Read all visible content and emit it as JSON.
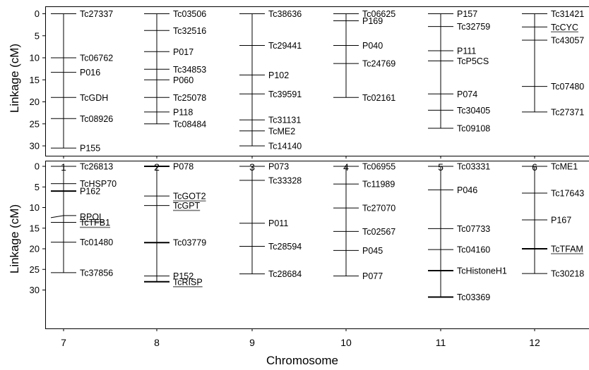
{
  "chart_data": {
    "type": "genetic-linkage-map",
    "xlabel": "Chromosome",
    "ylabel": "Linkage (cM)",
    "ylim": [
      0,
      32
    ],
    "yticks": [
      0,
      5,
      10,
      15,
      20,
      25,
      30
    ],
    "grid": false,
    "panels": [
      {
        "chromosomes": [
          {
            "label": "1",
            "length": 30.5,
            "markers": [
              {
                "name": "Tc27337",
                "pos": 0
              },
              {
                "name": "Tc06762",
                "pos": 10
              },
              {
                "name": "P016",
                "pos": 13.3
              },
              {
                "name": "TcGDH",
                "pos": 19
              },
              {
                "name": "Tc08926",
                "pos": 23.8
              },
              {
                "name": "P155",
                "pos": 30.5
              }
            ]
          },
          {
            "label": "2",
            "length": 25,
            "markers": [
              {
                "name": "Tc03506",
                "pos": 0
              },
              {
                "name": "Tc32516",
                "pos": 3.8
              },
              {
                "name": "P017",
                "pos": 8.6
              },
              {
                "name": "Tc34853",
                "pos": 12.6
              },
              {
                "name": "P060",
                "pos": 15
              },
              {
                "name": "Tc25078",
                "pos": 19
              },
              {
                "name": "P118",
                "pos": 22.3
              },
              {
                "name": "Tc08484",
                "pos": 25
              }
            ]
          },
          {
            "label": "3",
            "length": 30,
            "markers": [
              {
                "name": "Tc38636",
                "pos": 0
              },
              {
                "name": "Tc29441",
                "pos": 7.2
              },
              {
                "name": "P102",
                "pos": 13.9
              },
              {
                "name": "Tc39591",
                "pos": 18.2
              },
              {
                "name": "Tc31131",
                "pos": 24.1
              },
              {
                "name": "TcME2",
                "pos": 26.6
              },
              {
                "name": "Tc14140",
                "pos": 30
              }
            ]
          },
          {
            "label": "4",
            "length": 19,
            "markers": [
              {
                "name": "Tc06625",
                "pos": 0
              },
              {
                "name": "P169",
                "pos": 1.6,
                "labelOffset": 0
              },
              {
                "name": "P040",
                "pos": 7.2
              },
              {
                "name": "Tc24769",
                "pos": 11.3
              },
              {
                "name": "Tc02161",
                "pos": 19
              }
            ]
          },
          {
            "label": "5",
            "length": 26,
            "markers": [
              {
                "name": "P157",
                "pos": 0
              },
              {
                "name": "Tc32759",
                "pos": 2.9
              },
              {
                "name": "P111",
                "pos": 8.4
              },
              {
                "name": "TcP5CS",
                "pos": 10.7
              },
              {
                "name": "P074",
                "pos": 18.2
              },
              {
                "name": "Tc30405",
                "pos": 21.9
              },
              {
                "name": "Tc09108",
                "pos": 26
              }
            ]
          },
          {
            "label": "6",
            "length": 22.3,
            "markers": [
              {
                "name": "Tc31421",
                "pos": 0
              },
              {
                "name": "TcCYC",
                "pos": 3,
                "underline": true
              },
              {
                "name": "Tc43057",
                "pos": 6
              },
              {
                "name": "Tc07480",
                "pos": 16.5
              },
              {
                "name": "Tc27371",
                "pos": 22.3
              }
            ]
          }
        ]
      },
      {
        "chromosomes": [
          {
            "label": "7",
            "length": 25.8,
            "markers": [
              {
                "name": "Tc26813",
                "pos": 0
              },
              {
                "name": "TcHSP70",
                "pos": 4.2
              },
              {
                "name": "P162",
                "pos": 6,
                "bold": true
              },
              {
                "name": "RPOL",
                "pos": 12.2,
                "underline": true,
                "diagonal": true
              },
              {
                "name": "TcTFB1",
                "pos": 13.6,
                "underline": true
              },
              {
                "name": "Tc01480",
                "pos": 18.4
              },
              {
                "name": "Tc37856",
                "pos": 25.8
              }
            ]
          },
          {
            "label": "8",
            "length": 28,
            "markers": [
              {
                "name": "P078",
                "pos": 0,
                "bold": true
              },
              {
                "name": "TcGOT2",
                "pos": 7.2,
                "underline": true
              },
              {
                "name": "TcGPT",
                "pos": 9.5,
                "underline": true
              },
              {
                "name": "Tc03779",
                "pos": 18.5,
                "bold": true
              },
              {
                "name": "P152",
                "pos": 26.6
              },
              {
                "name": "TcRISP",
                "pos": 28,
                "underline": true,
                "bold": true
              }
            ]
          },
          {
            "label": "9",
            "length": 26.1,
            "markers": [
              {
                "name": "P073",
                "pos": 0
              },
              {
                "name": "Tc33328",
                "pos": 3.4
              },
              {
                "name": "P011",
                "pos": 13.8
              },
              {
                "name": "Tc28594",
                "pos": 19.4
              },
              {
                "name": "Tc28684",
                "pos": 26.1
              }
            ]
          },
          {
            "label": "10",
            "length": 26.6,
            "markers": [
              {
                "name": "Tc06955",
                "pos": 0
              },
              {
                "name": "Tc11989",
                "pos": 4.3
              },
              {
                "name": "Tc27070",
                "pos": 10.1
              },
              {
                "name": "Tc02567",
                "pos": 15.8
              },
              {
                "name": "P045",
                "pos": 20.4
              },
              {
                "name": "P077",
                "pos": 26.6
              }
            ]
          },
          {
            "label": "11",
            "length": 31.7,
            "markers": [
              {
                "name": "Tc03331",
                "pos": 0
              },
              {
                "name": "P046",
                "pos": 5.7
              },
              {
                "name": "Tc07733",
                "pos": 15.1
              },
              {
                "name": "Tc04160",
                "pos": 20.2
              },
              {
                "name": "TcHistoneH1",
                "pos": 25.3,
                "bold": true
              },
              {
                "name": "Tc03369",
                "pos": 31.7,
                "bold": true
              }
            ]
          },
          {
            "label": "12",
            "length": 26,
            "markers": [
              {
                "name": "TcME1",
                "pos": 0
              },
              {
                "name": "Tc17643",
                "pos": 6.5
              },
              {
                "name": "P167",
                "pos": 13
              },
              {
                "name": "TcTFAM",
                "pos": 20,
                "underline": true,
                "bold": true
              },
              {
                "name": "Tc30218",
                "pos": 26
              }
            ]
          }
        ]
      }
    ]
  }
}
